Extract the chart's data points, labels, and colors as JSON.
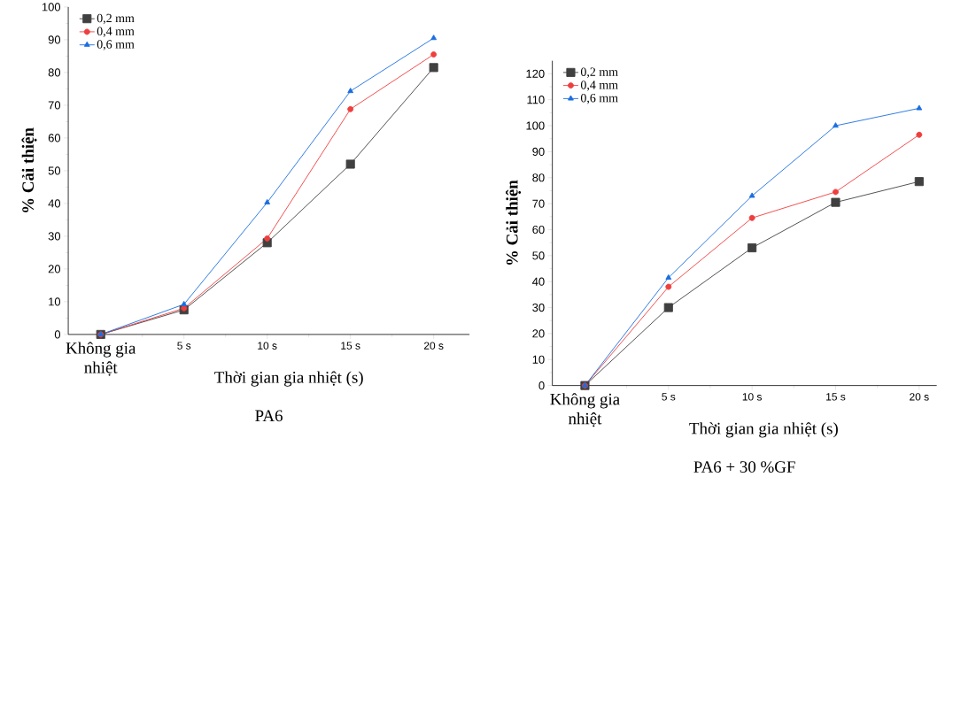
{
  "chart_data": [
    {
      "type": "line",
      "title": "PA6",
      "xlabel": "Thời gian gia nhiệt (s)",
      "ylabel": "% Cải thiện",
      "categories": [
        "Không gia nhiệt",
        "5 s",
        "10 s",
        "15 s",
        "20 s"
      ],
      "ylim": [
        0,
        100
      ],
      "yticks": [
        0,
        10,
        20,
        30,
        40,
        50,
        60,
        70,
        80,
        90,
        100
      ],
      "legend": "top left",
      "line_style": "solid",
      "series": [
        {
          "name": "0,2 mm",
          "color": "#404040",
          "marker": "square",
          "values": [
            0,
            7.5,
            28,
            52,
            81.5
          ]
        },
        {
          "name": "0,4 mm",
          "color": "#ef3e3e",
          "marker": "circle",
          "values": [
            0,
            8,
            29.3,
            68.8,
            85.5
          ]
        },
        {
          "name": "0,6 mm",
          "color": "#1a6ee0",
          "marker": "triangle",
          "values": [
            0,
            9.2,
            40.3,
            74.3,
            90.5
          ]
        }
      ]
    },
    {
      "type": "line",
      "title": "PA6 + 30 %GF",
      "xlabel": "Thời gian gia nhiệt (s)",
      "ylabel": "% Cải thiện",
      "categories": [
        "Không gia nhiệt",
        "5 s",
        "10 s",
        "15 s",
        "20 s"
      ],
      "ylim": [
        0,
        125
      ],
      "yticks": [
        0,
        10,
        20,
        30,
        40,
        50,
        60,
        70,
        80,
        90,
        100,
        110,
        120
      ],
      "legend": "top left",
      "line_style": "solid",
      "series": [
        {
          "name": "0,2 mm",
          "color": "#404040",
          "marker": "square",
          "values": [
            0,
            30,
            53,
            70.5,
            78.5
          ]
        },
        {
          "name": "0,4 mm",
          "color": "#ef3e3e",
          "marker": "circle",
          "values": [
            0,
            38,
            64.5,
            74.5,
            96.5
          ]
        },
        {
          "name": "0,6 mm",
          "color": "#1a6ee0",
          "marker": "triangle",
          "values": [
            0,
            41.5,
            73,
            100,
            106.7
          ]
        }
      ]
    }
  ]
}
